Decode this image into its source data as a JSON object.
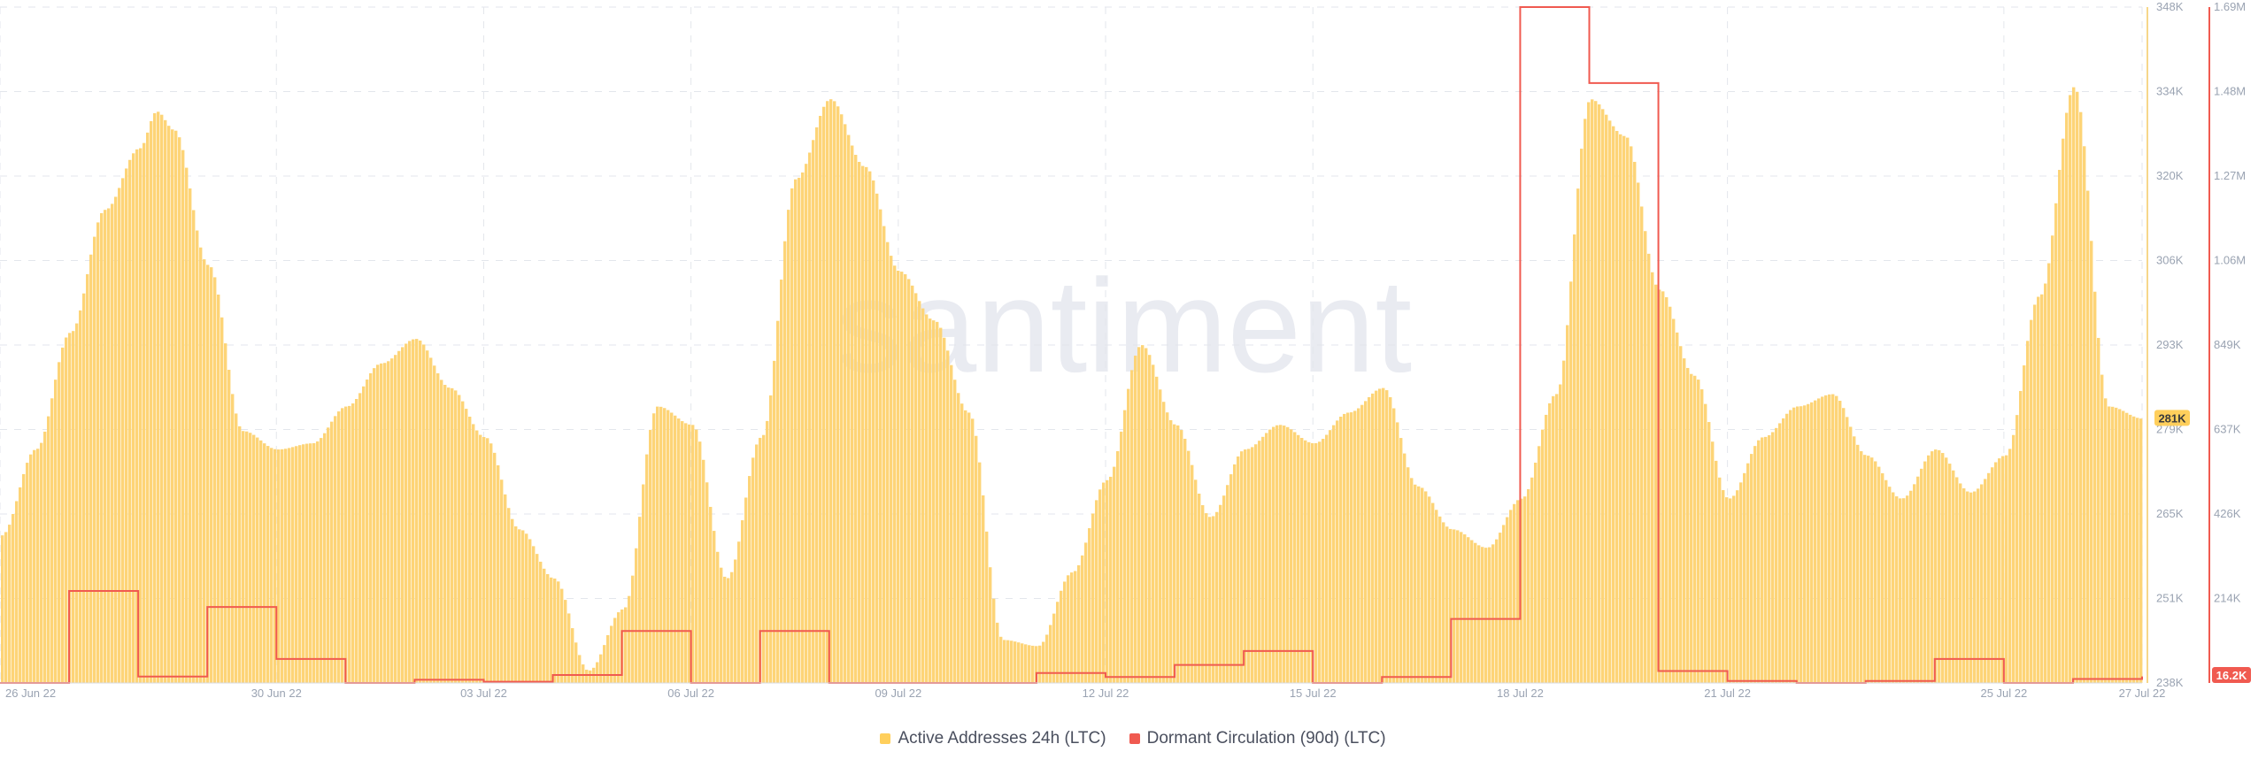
{
  "watermark": "santiment",
  "legend": {
    "active_label": "Active Addresses 24h (LTC)",
    "dormant_label": "Dormant Circulation (90d) (LTC)"
  },
  "colors": {
    "active": "#ffcf5c",
    "active_fill": "#fdd477",
    "dormant": "#f05a50",
    "grid": "#e3e6ec",
    "axis_text": "#9aa3b2"
  },
  "chart_data": {
    "type": "bar",
    "title": "",
    "xlabel": "",
    "x_ticks": [
      "26 Jun 22",
      "30 Jun 22",
      "03 Jul 22",
      "06 Jul 22",
      "09 Jul 22",
      "12 Jul 22",
      "15 Jul 22",
      "18 Jul 22",
      "21 Jul 22",
      "25 Jul 22",
      "27 Jul 22"
    ],
    "x_range": [
      "2022-06-26",
      "2022-07-27"
    ],
    "grid": true,
    "legend_position": "bottom-center",
    "y_axis_left": {
      "series": "Active Addresses 24h (LTC)",
      "range": [
        238000,
        348000
      ],
      "ticks": [
        "348K",
        "334K",
        "320K",
        "306K",
        "293K",
        "279K",
        "265K",
        "251K",
        "238K"
      ]
    },
    "y_axis_right": {
      "series": "Dormant Circulation (90d) (LTC)",
      "range": [
        0,
        1690000
      ],
      "ticks": [
        "1.69M",
        "1.48M",
        "1.27M",
        "1.06M",
        "849K",
        "637K",
        "426K",
        "214K"
      ]
    },
    "last_value_badges": {
      "active": "281K",
      "dormant": "16.2K"
    },
    "series": [
      {
        "name": "Active Addresses 24h (LTC)",
        "type": "bar",
        "axis": "left",
        "points": [
          [
            "2022-06-26",
            262000
          ],
          [
            "2022-06-26T12",
            276000
          ],
          [
            "2022-06-27",
            295000
          ],
          [
            "2022-06-27T12",
            315000
          ],
          [
            "2022-06-28",
            325000
          ],
          [
            "2022-06-28T06",
            331000
          ],
          [
            "2022-06-28T12",
            328000
          ],
          [
            "2022-06-29",
            306000
          ],
          [
            "2022-06-29T12",
            279000
          ],
          [
            "2022-06-30",
            276000
          ],
          [
            "2022-06-30T12",
            277000
          ],
          [
            "2022-07-01",
            283000
          ],
          [
            "2022-07-01T12",
            290000
          ],
          [
            "2022-07-02",
            294000
          ],
          [
            "2022-07-02T12",
            286000
          ],
          [
            "2022-07-03",
            278000
          ],
          [
            "2022-07-03T12",
            263000
          ],
          [
            "2022-07-04",
            255000
          ],
          [
            "2022-07-04T12",
            240000
          ],
          [
            "2022-07-05",
            250000
          ],
          [
            "2022-07-05T12",
            283000
          ],
          [
            "2022-07-06",
            280000
          ],
          [
            "2022-07-06T12",
            255000
          ],
          [
            "2022-07-07",
            278000
          ],
          [
            "2022-07-07T12",
            320000
          ],
          [
            "2022-07-08",
            333000
          ],
          [
            "2022-07-08T12",
            322000
          ],
          [
            "2022-07-09",
            305000
          ],
          [
            "2022-07-09T12",
            297000
          ],
          [
            "2022-07-10",
            282000
          ],
          [
            "2022-07-10T12",
            245000
          ],
          [
            "2022-07-11",
            244000
          ],
          [
            "2022-07-11T12",
            256000
          ],
          [
            "2022-07-12",
            271000
          ],
          [
            "2022-07-12T12",
            293000
          ],
          [
            "2022-07-13",
            280000
          ],
          [
            "2022-07-13T12",
            265000
          ],
          [
            "2022-07-14",
            276000
          ],
          [
            "2022-07-14T12",
            280000
          ],
          [
            "2022-07-15",
            277000
          ],
          [
            "2022-07-15T12",
            282000
          ],
          [
            "2022-07-16",
            286000
          ],
          [
            "2022-07-16T12",
            270000
          ],
          [
            "2022-07-17",
            263000
          ],
          [
            "2022-07-17T12",
            260000
          ],
          [
            "2022-07-18",
            268000
          ],
          [
            "2022-07-18T12",
            285000
          ],
          [
            "2022-07-19",
            333000
          ],
          [
            "2022-07-19T12",
            327000
          ],
          [
            "2022-07-20",
            302000
          ],
          [
            "2022-07-20T12",
            288000
          ],
          [
            "2022-07-21",
            268000
          ],
          [
            "2022-07-21T12",
            278000
          ],
          [
            "2022-07-22",
            283000
          ],
          [
            "2022-07-22T12",
            285000
          ],
          [
            "2022-07-23",
            275000
          ],
          [
            "2022-07-23T12",
            268000
          ],
          [
            "2022-07-24",
            276000
          ],
          [
            "2022-07-24T12",
            269000
          ],
          [
            "2022-07-25",
            275000
          ],
          [
            "2022-07-25T12",
            301000
          ],
          [
            "2022-07-26",
            335000
          ],
          [
            "2022-07-26T12",
            283000
          ],
          [
            "2022-07-27",
            281000
          ]
        ]
      },
      {
        "name": "Dormant Circulation (90d) (LTC)",
        "type": "step-line",
        "axis": "right",
        "points": [
          [
            "2022-06-26",
            0
          ],
          [
            "2022-06-27",
            230000
          ],
          [
            "2022-06-28",
            16000
          ],
          [
            "2022-06-29",
            190000
          ],
          [
            "2022-06-30",
            60000
          ],
          [
            "2022-07-01",
            0
          ],
          [
            "2022-07-02",
            8000
          ],
          [
            "2022-07-03",
            3000
          ],
          [
            "2022-07-04",
            20000
          ],
          [
            "2022-07-05",
            130000
          ],
          [
            "2022-07-06",
            0
          ],
          [
            "2022-07-07",
            130000
          ],
          [
            "2022-07-08",
            0
          ],
          [
            "2022-07-10",
            0
          ],
          [
            "2022-07-11",
            25000
          ],
          [
            "2022-07-12",
            15000
          ],
          [
            "2022-07-13",
            45000
          ],
          [
            "2022-07-14",
            80000
          ],
          [
            "2022-07-15",
            0
          ],
          [
            "2022-07-16",
            15000
          ],
          [
            "2022-07-17",
            160000
          ],
          [
            "2022-07-18",
            1690000
          ],
          [
            "2022-07-19",
            1500000
          ],
          [
            "2022-07-20",
            30000
          ],
          [
            "2022-07-21",
            5000
          ],
          [
            "2022-07-22",
            0
          ],
          [
            "2022-07-23",
            5000
          ],
          [
            "2022-07-24",
            60000
          ],
          [
            "2022-07-25",
            0
          ],
          [
            "2022-07-26",
            10000
          ],
          [
            "2022-07-27",
            16200
          ]
        ]
      }
    ]
  }
}
